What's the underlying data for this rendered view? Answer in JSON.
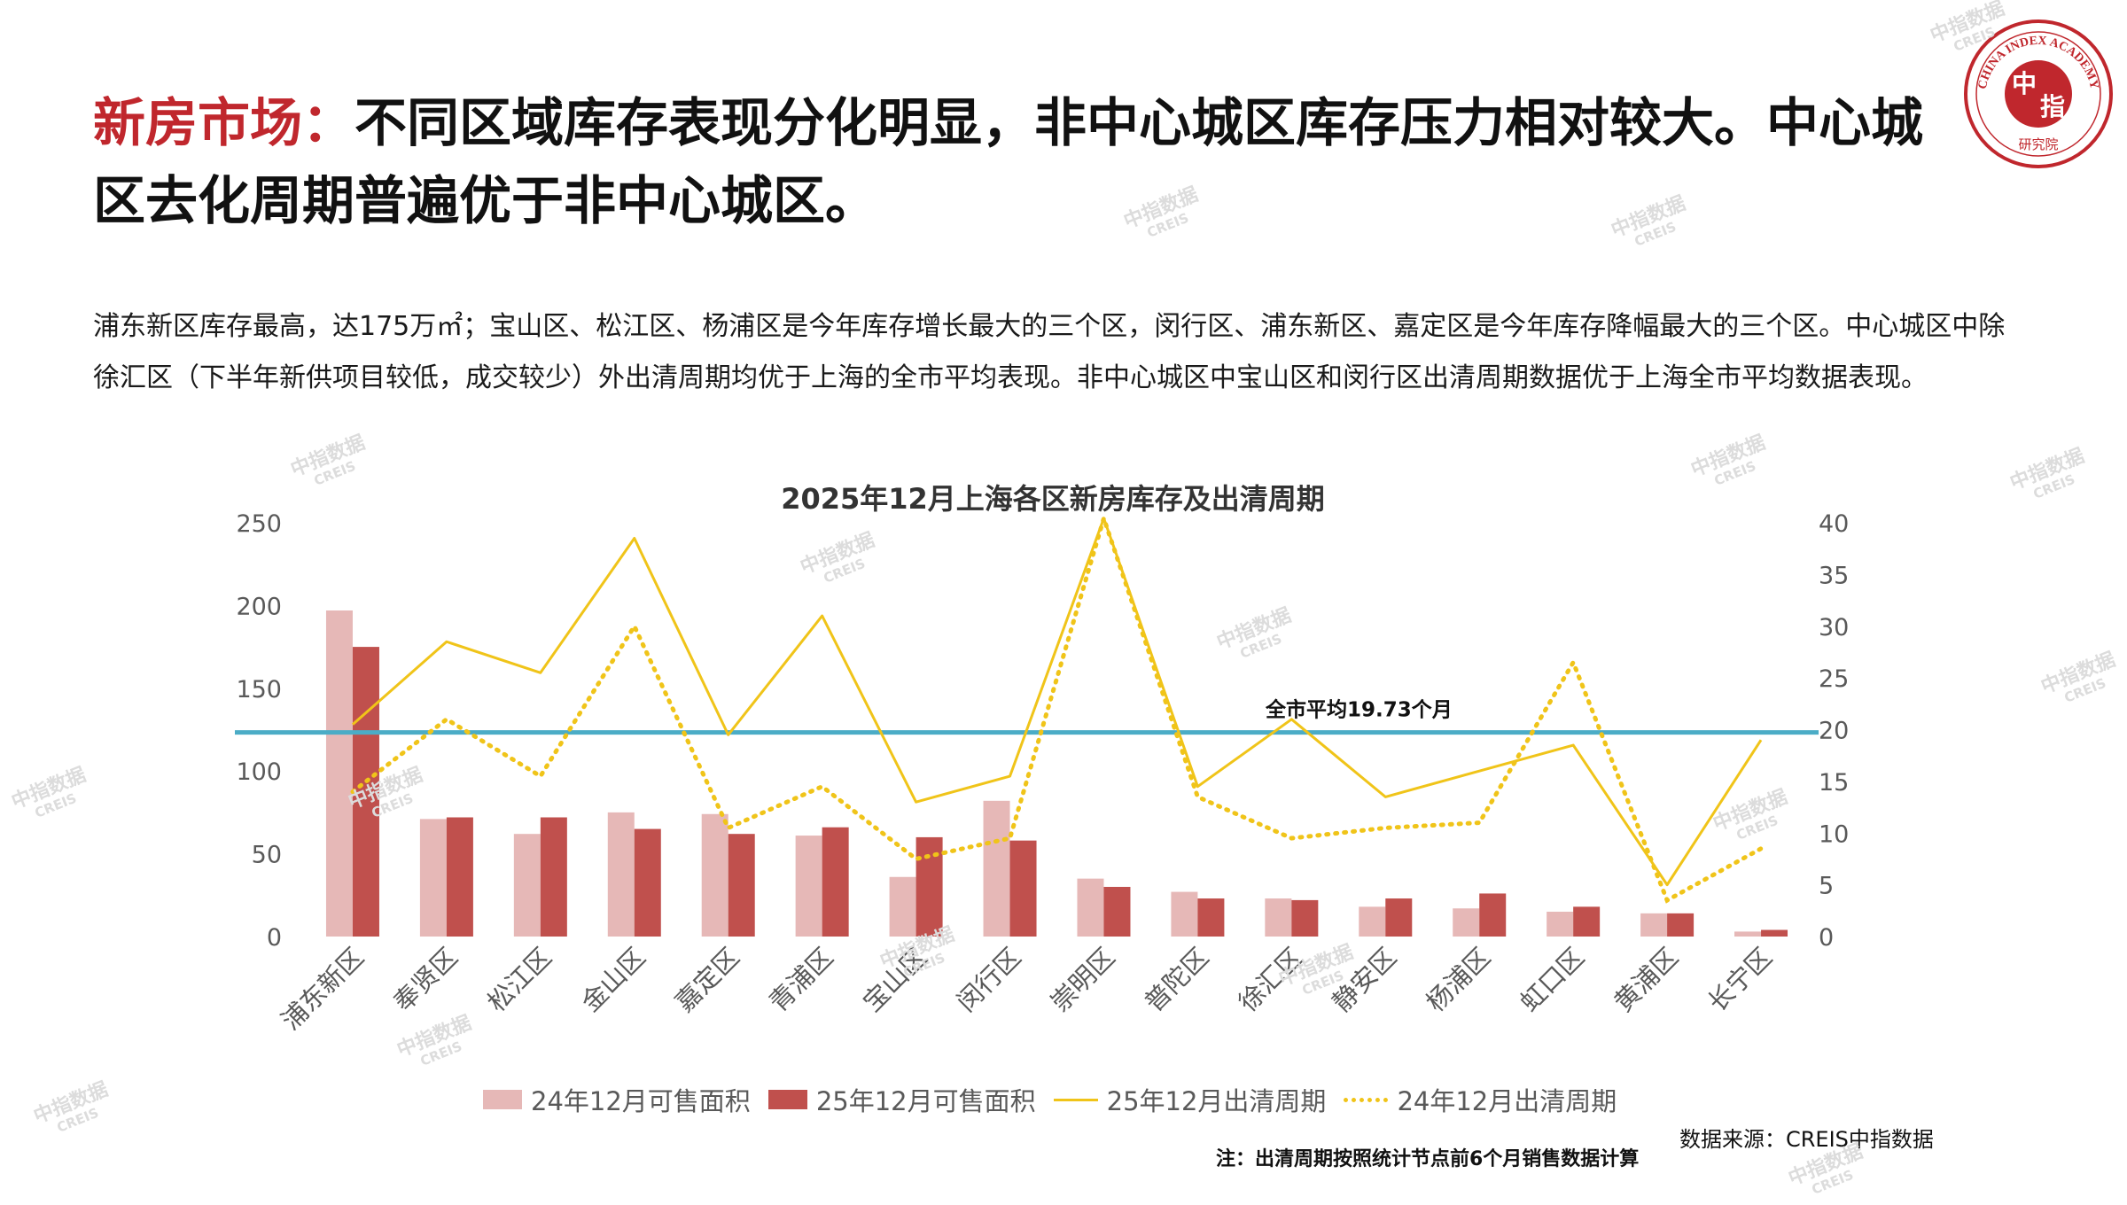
{
  "header": {
    "title_highlight": "新房市场：",
    "title_rest": "不同区域库存表现分化明显，非中心城区库存压力相对较大。中心城区去化周期普遍优于非中心城区。"
  },
  "summary": "浦东新区库存最高，达175万㎡；宝山区、松江区、杨浦区是今年库存增长最大的三个区，闵行区、浦东新区、嘉定区是今年库存降幅最大的三个区。中心城区中除徐汇区（下半年新供项目较低，成交较少）外出清周期均优于上海的全市平均表现。非中心城区中宝山区和闵行区出清周期数据优于上海全市平均数据表现。",
  "logo": {
    "text_top": "CHINA INDEX ACADEMY",
    "text_center_1": "中",
    "text_center_2": "指",
    "text_bottom": "研究院",
    "color": "#c0272d"
  },
  "watermark": {
    "cn": "中指数据",
    "en": "CREIS"
  },
  "chart_data": {
    "type": "bar",
    "title": "2025年12月上海各区新房库存及出清周期",
    "categories": [
      "浦东新区",
      "奉贤区",
      "松江区",
      "金山区",
      "嘉定区",
      "青浦区",
      "宝山区",
      "闵行区",
      "崇明区",
      "普陀区",
      "徐汇区",
      "静安区",
      "杨浦区",
      "虹口区",
      "黄浦区",
      "长宁区"
    ],
    "series": [
      {
        "name": "24年12月可售面积",
        "type": "bar",
        "axis": "left",
        "color": "#e6b8b7",
        "values": [
          197,
          71,
          62,
          75,
          74,
          61,
          36,
          82,
          35,
          27,
          23,
          18,
          17,
          15,
          14,
          3
        ]
      },
      {
        "name": "25年12月可售面积",
        "type": "bar",
        "axis": "left",
        "color": "#c0504d",
        "values": [
          175,
          72,
          72,
          65,
          62,
          66,
          60,
          58,
          30,
          23,
          22,
          23,
          26,
          18,
          14,
          4
        ]
      },
      {
        "name": "25年12月出清周期",
        "type": "line",
        "axis": "right",
        "color": "#f0c419",
        "values": [
          20.5,
          28.5,
          25.5,
          38.5,
          19.5,
          31,
          13,
          15.5,
          42,
          14.5,
          21,
          13.5,
          16,
          18.5,
          5,
          19
        ]
      },
      {
        "name": "24年12月出清周期",
        "type": "line-dotted",
        "axis": "right",
        "color": "#f0c419",
        "values": [
          14,
          21,
          15.5,
          30,
          10.5,
          14.5,
          7.5,
          9.5,
          42,
          13.5,
          9.5,
          10.5,
          11,
          26.5,
          3.5,
          8.5
        ]
      }
    ],
    "y_left": {
      "min": 0,
      "max": 250,
      "ticks": [
        0,
        50,
        100,
        150,
        200,
        250
      ]
    },
    "y_right": {
      "min": 0,
      "max": 40,
      "ticks": [
        0,
        5,
        10,
        15,
        20,
        25,
        30,
        35,
        40
      ]
    },
    "reference_line": {
      "value": 19.73,
      "axis": "right",
      "label": "全市平均19.73个月",
      "color": "#4bacc6"
    },
    "legend_position": "bottom",
    "grid": false
  },
  "footer": {
    "source": "数据来源：CREIS中指数据",
    "note": "注：出清周期按照统计节点前6个月销售数据计算"
  }
}
